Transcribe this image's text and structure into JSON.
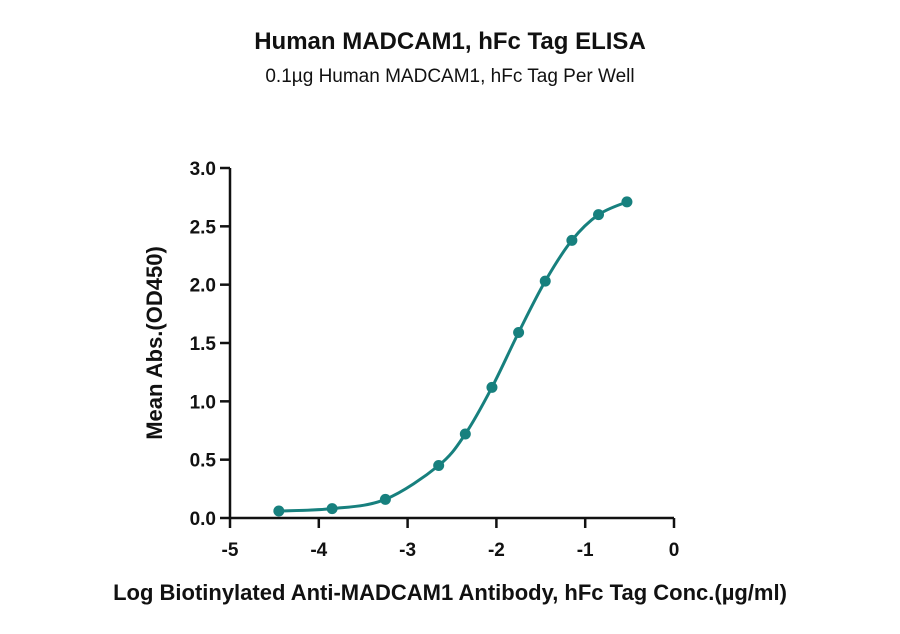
{
  "chart_data": {
    "type": "line",
    "title": "Human MADCAM1, hFc Tag ELISA",
    "subtitle": "0.1µg Human MADCAM1, hFc Tag Per Well",
    "xlabel": "Log Biotinylated Anti-MADCAM1 Antibody, hFc Tag Conc.(µg/ml)",
    "ylabel": "Mean Abs.(OD450)",
    "xlim": [
      -5,
      0
    ],
    "ylim": [
      0,
      3.0
    ],
    "x_ticks": [
      "-5",
      "-4",
      "-3",
      "-2",
      "-1",
      "0"
    ],
    "y_ticks": [
      "0.0",
      "0.5",
      "1.0",
      "1.5",
      "2.0",
      "2.5",
      "3.0"
    ],
    "grid": false,
    "series_color": "#17807e",
    "series": [
      {
        "x": [
          -4.45,
          -3.85,
          -3.25,
          -2.65,
          -2.35,
          -2.05,
          -1.75,
          -1.45,
          -1.15,
          -0.85,
          -0.53
        ],
        "y": [
          0.06,
          0.08,
          0.16,
          0.45,
          0.72,
          1.12,
          1.59,
          2.03,
          2.38,
          2.6,
          2.71
        ]
      }
    ]
  }
}
